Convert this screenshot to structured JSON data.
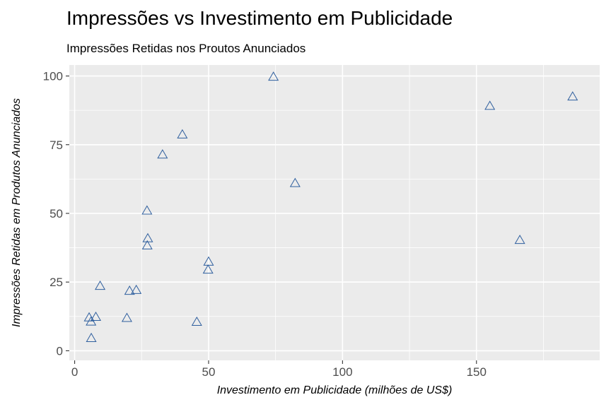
{
  "chart_data": {
    "type": "scatter",
    "title": "Impressões vs Investimento em Publicidade",
    "subtitle": "Impressões Retidas nos Proutos Anunciados",
    "xlabel": "Investimento em Publicidade (milhões de US$)",
    "ylabel": "Impressões Retidas em Produtos Anunciados",
    "xlim": [
      -2,
      196
    ],
    "ylim": [
      -3.5,
      104
    ],
    "xticks": [
      0,
      50,
      100,
      150
    ],
    "yticks": [
      0,
      25,
      50,
      75,
      100
    ],
    "grid": true,
    "marker": "open-triangle",
    "marker_color": "#2f5f9e",
    "panel_color": "#ebebeb",
    "points": [
      {
        "x": 5.4,
        "y": 12.0
      },
      {
        "x": 6.1,
        "y": 10.5
      },
      {
        "x": 6.2,
        "y": 4.5
      },
      {
        "x": 7.9,
        "y": 12.2
      },
      {
        "x": 9.5,
        "y": 23.5
      },
      {
        "x": 19.5,
        "y": 11.8
      },
      {
        "x": 20.5,
        "y": 21.7
      },
      {
        "x": 23.0,
        "y": 22.0
      },
      {
        "x": 27.0,
        "y": 50.9
      },
      {
        "x": 27.3,
        "y": 40.8
      },
      {
        "x": 27.1,
        "y": 38.2
      },
      {
        "x": 32.8,
        "y": 71.3
      },
      {
        "x": 40.2,
        "y": 78.6
      },
      {
        "x": 45.6,
        "y": 10.4
      },
      {
        "x": 50.0,
        "y": 32.3
      },
      {
        "x": 49.8,
        "y": 29.4
      },
      {
        "x": 74.2,
        "y": 99.6
      },
      {
        "x": 82.3,
        "y": 60.9
      },
      {
        "x": 155.0,
        "y": 89.0
      },
      {
        "x": 166.2,
        "y": 40.2
      },
      {
        "x": 185.9,
        "y": 92.4
      }
    ]
  }
}
